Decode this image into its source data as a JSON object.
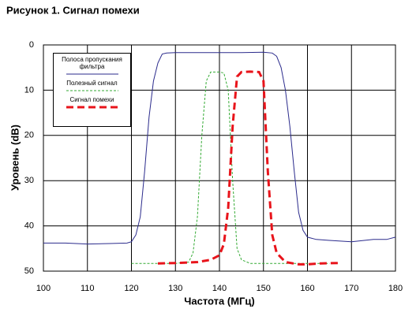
{
  "chart_data": {
    "type": "line",
    "title": "Рисунок 1. Сигнал помехи",
    "x_label": "Частота (МГц)",
    "y_label": "Уровень (dB)",
    "xlim": [
      100,
      180
    ],
    "xticks": [
      100,
      110,
      120,
      130,
      140,
      150,
      160,
      170,
      180
    ],
    "ylim": [
      50,
      0
    ],
    "yticks": [
      0,
      10,
      20,
      30,
      40,
      50
    ],
    "grid": true,
    "legend": "upper left",
    "series": [
      {
        "name": "Полоса пропускания фильтра",
        "color": "#2b2b8c",
        "style": "solid",
        "width": 1,
        "x": [
          100,
          105,
          110,
          115,
          119,
          120,
          121,
          122,
          123,
          124,
          125,
          126,
          127,
          128,
          130,
          135,
          140,
          145,
          150,
          152,
          153,
          154,
          155,
          156,
          157,
          158,
          159,
          160,
          162,
          165,
          170,
          175,
          178,
          180
        ],
        "values": [
          43.8,
          43.8,
          44,
          43.9,
          43.8,
          43.5,
          42,
          38,
          28,
          16,
          8,
          4,
          2,
          1.8,
          1.7,
          1.7,
          1.7,
          1.7,
          1.6,
          1.8,
          2.5,
          5,
          10,
          18,
          28,
          37,
          41,
          42.5,
          43,
          43.2,
          43.5,
          43,
          43,
          42.5
        ]
      },
      {
        "name": "Полезный сигнал",
        "color": "#33aa33",
        "style": "dashed",
        "width": 1,
        "x": [
          120,
          125,
          130,
          133,
          134,
          135,
          136,
          137,
          138,
          140,
          141,
          142,
          143,
          144,
          145,
          147,
          150,
          155,
          160,
          165
        ],
        "values": [
          48.3,
          48.3,
          48.3,
          48,
          46,
          38,
          20,
          8,
          6,
          6,
          6.2,
          10,
          30,
          45,
          47.5,
          48.3,
          48.3,
          48.3,
          48.3,
          48.3
        ]
      },
      {
        "name": "Сигнал помехи",
        "color": "#e8141b",
        "style": "bold-dashed",
        "width": 3,
        "x": [
          126,
          130,
          135,
          138,
          140,
          141,
          142,
          143,
          144,
          145,
          147,
          149,
          150,
          151,
          152,
          153,
          155,
          158,
          160,
          163,
          167
        ],
        "values": [
          48.3,
          48.2,
          48,
          47.5,
          46.5,
          44,
          36,
          18,
          7,
          6,
          5.9,
          6,
          8,
          28,
          42,
          46,
          48,
          48.5,
          48.5,
          48.3,
          48.2
        ]
      }
    ]
  }
}
